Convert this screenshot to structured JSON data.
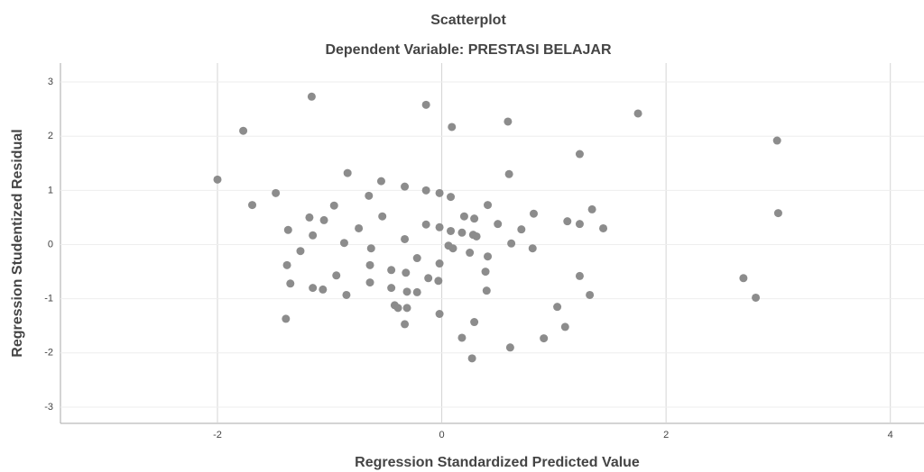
{
  "chart_data": {
    "type": "scatter",
    "title": "Scatterplot",
    "subtitle": "Dependent Variable: PRESTASI BELAJAR",
    "x_label": "Regression Standardized Predicted Value",
    "y_label": "Regression Studentized Residual",
    "color": "#8c8c8c",
    "grid": true,
    "xlim": [
      -3.4,
      4.3
    ],
    "ylim": [
      -3.3,
      3.35
    ],
    "xticks": [
      -2,
      0,
      2,
      4
    ],
    "yticks": [
      -3,
      -2,
      -1,
      0,
      1,
      2,
      3
    ],
    "x": [
      -2.0,
      -1.77,
      -1.69,
      -1.48,
      -1.16,
      -1.18,
      -1.15,
      -1.37,
      -1.05,
      -1.26,
      -1.38,
      -1.35,
      -1.15,
      -1.06,
      -1.39,
      -0.84,
      -0.96,
      -0.87,
      -0.74,
      -0.94,
      -0.85,
      -0.65,
      -0.54,
      -0.53,
      -0.63,
      -0.64,
      -0.64,
      -0.45,
      -0.33,
      -0.33,
      -0.32,
      -0.45,
      -0.42,
      -0.39,
      -0.31,
      -0.33,
      -0.31,
      -0.22,
      -0.22,
      -0.14,
      -0.14,
      -0.14,
      -0.12,
      -0.02,
      -0.02,
      -0.03,
      -0.02,
      -0.02,
      0.09,
      0.08,
      0.06,
      0.1,
      0.08,
      0.18,
      0.2,
      0.28,
      0.31,
      0.29,
      0.25,
      0.41,
      0.41,
      0.39,
      0.4,
      0.5,
      0.29,
      0.18,
      0.27,
      0.59,
      0.6,
      0.62,
      0.61,
      0.71,
      0.82,
      0.81,
      0.91,
      1.03,
      1.1,
      1.12,
      1.23,
      1.23,
      1.23,
      1.34,
      1.32,
      1.44,
      1.75,
      2.99,
      3.0,
      2.69,
      2.8
    ],
    "y": [
      1.2,
      2.1,
      0.73,
      0.95,
      2.73,
      0.5,
      0.17,
      0.27,
      0.45,
      -0.12,
      -0.38,
      -0.72,
      -0.8,
      -0.83,
      -1.37,
      1.32,
      0.72,
      0.03,
      0.3,
      -0.57,
      -0.93,
      0.9,
      1.17,
      0.52,
      -0.07,
      -0.38,
      -0.7,
      -0.47,
      1.07,
      0.1,
      -0.52,
      -0.8,
      -1.12,
      -1.17,
      -1.17,
      -1.47,
      -0.87,
      -0.88,
      -0.25,
      2.58,
      1.0,
      0.37,
      -0.62,
      0.95,
      0.32,
      -0.67,
      -0.35,
      -1.28,
      2.17,
      0.88,
      -0.02,
      -0.07,
      0.25,
      0.22,
      0.52,
      0.18,
      0.15,
      0.48,
      -0.15,
      0.73,
      -0.22,
      -0.5,
      -0.85,
      0.38,
      -1.43,
      -1.72,
      -2.1,
      2.27,
      1.3,
      0.02,
      -1.9,
      0.28,
      0.57,
      -0.07,
      -1.73,
      -1.15,
      -1.52,
      0.43,
      0.38,
      1.67,
      -0.58,
      0.65,
      -0.93,
      0.3,
      2.42,
      1.92,
      0.58,
      -0.62,
      -0.98
    ]
  }
}
